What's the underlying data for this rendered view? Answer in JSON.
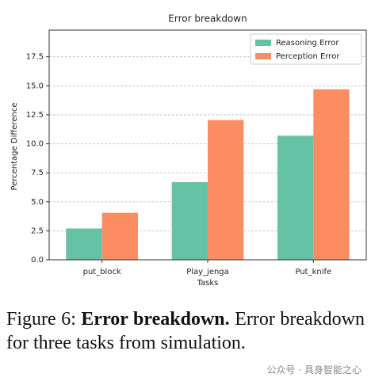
{
  "chart_data": {
    "type": "bar",
    "title": "Error breakdown",
    "x_label": "Tasks",
    "y_label": "Percentage Difference",
    "categories": [
      "put_block",
      "Play_jenga",
      "Put_knife"
    ],
    "series": [
      {
        "name": "Reasoning Error",
        "color": "#66c2a5",
        "values": [
          2.7,
          6.7,
          10.7
        ]
      },
      {
        "name": "Perception Error",
        "color": "#fc8d62",
        "values": [
          4.05,
          12.05,
          14.7
        ]
      }
    ],
    "ylim": [
      0,
      19.8
    ],
    "yticks": [
      {
        "value": 0,
        "label": "0.0"
      },
      2.5,
      {
        "value": 5,
        "label": "5.0"
      },
      7.5,
      {
        "value": 10,
        "label": "10.0"
      },
      12.5,
      {
        "value": 15,
        "label": "15.0"
      },
      17.5
    ],
    "grid": true,
    "legend": "upper right"
  },
  "caption": {
    "label": "Figure 6:",
    "bold": "Error breakdown.",
    "text": "Error breakdown for three tasks from simulation."
  },
  "watermark": "公众号 · 具身智能之心"
}
